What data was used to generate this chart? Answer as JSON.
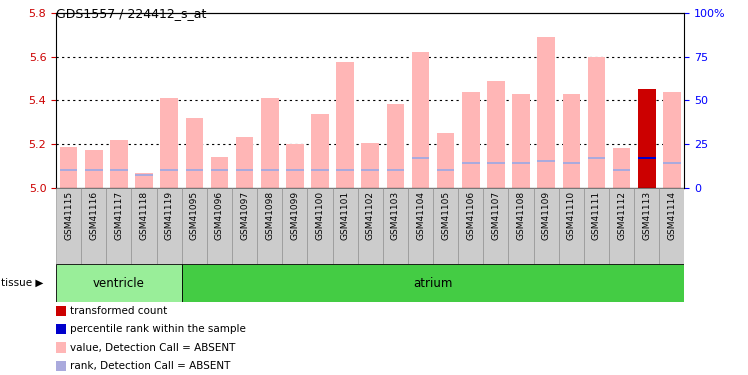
{
  "title": "GDS1557 / 224412_s_at",
  "samples": [
    "GSM41115",
    "GSM41116",
    "GSM41117",
    "GSM41118",
    "GSM41119",
    "GSM41095",
    "GSM41096",
    "GSM41097",
    "GSM41098",
    "GSM41099",
    "GSM41100",
    "GSM41101",
    "GSM41102",
    "GSM41103",
    "GSM41104",
    "GSM41105",
    "GSM41106",
    "GSM41107",
    "GSM41108",
    "GSM41109",
    "GSM41110",
    "GSM41111",
    "GSM41112",
    "GSM41113",
    "GSM41114"
  ],
  "values": [
    5.185,
    5.17,
    5.22,
    5.065,
    5.41,
    5.32,
    5.14,
    5.23,
    5.41,
    5.2,
    5.335,
    5.575,
    5.205,
    5.385,
    5.62,
    5.25,
    5.44,
    5.49,
    5.43,
    5.69,
    5.43,
    5.6,
    5.18,
    5.45,
    5.44
  ],
  "rank_pct": [
    10,
    10,
    10,
    7,
    10,
    10,
    10,
    10,
    10,
    10,
    10,
    10,
    10,
    10,
    17,
    10,
    14,
    14,
    14,
    15,
    14,
    17,
    10,
    17,
    14
  ],
  "is_present": [
    false,
    false,
    false,
    false,
    false,
    false,
    false,
    false,
    false,
    false,
    false,
    false,
    false,
    false,
    false,
    false,
    false,
    false,
    false,
    false,
    false,
    false,
    false,
    true,
    false
  ],
  "groups": [
    {
      "label": "ventricle",
      "start": 0,
      "end": 5
    },
    {
      "label": "atrium",
      "start": 5,
      "end": 25
    }
  ],
  "y_min": 5.0,
  "y_max": 5.8,
  "y_ticks_left": [
    5.0,
    5.2,
    5.4,
    5.6,
    5.8
  ],
  "y_ticks_right": [
    0,
    25,
    50,
    75,
    100
  ],
  "bar_color_absent": "#FFB6B6",
  "bar_color_present": "#CC0000",
  "rank_color_absent": "#AAAADD",
  "rank_color_present": "#0000CC",
  "group_color_ventricle": "#99EE99",
  "group_color_atrium": "#44CC44",
  "tick_bg_color": "#CCCCCC",
  "legend_items": [
    {
      "color": "#CC0000",
      "label": "transformed count"
    },
    {
      "color": "#0000CC",
      "label": "percentile rank within the sample"
    },
    {
      "color": "#FFB6B6",
      "label": "value, Detection Call = ABSENT"
    },
    {
      "color": "#AAAADD",
      "label": "rank, Detection Call = ABSENT"
    }
  ]
}
